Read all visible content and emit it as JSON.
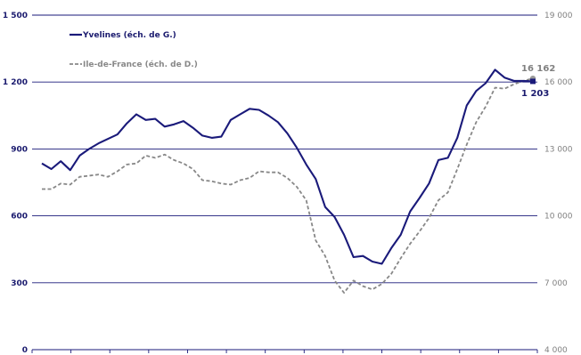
{
  "chart_data": {
    "type": "line",
    "title": "",
    "y_left": {
      "ylim": [
        0,
        1500
      ],
      "ticks": [
        0,
        300,
        600,
        900,
        1200,
        1500
      ],
      "tick_labels": [
        "0",
        "300",
        "600",
        "900",
        "1 200",
        "1 500"
      ]
    },
    "y_right": {
      "ylim": [
        4000,
        19000
      ],
      "ticks": [
        4000,
        7000,
        10000,
        13000,
        16000,
        19000
      ],
      "tick_labels": [
        "4 000",
        "7 000",
        "10 000",
        "13 000",
        "16 000",
        "19 000"
      ]
    },
    "grid": true,
    "legend_position": "top-left",
    "series": [
      {
        "name": "Yvelines (éch. de G.)",
        "axis": "left",
        "color": "#1a1a7a",
        "style": "solid",
        "values": [
          835,
          810,
          845,
          805,
          870,
          900,
          925,
          945,
          965,
          1015,
          1055,
          1030,
          1035,
          1000,
          1010,
          1025,
          995,
          960,
          950,
          955,
          1030,
          1055,
          1080,
          1075,
          1050,
          1020,
          970,
          905,
          830,
          765,
          640,
          595,
          515,
          415,
          420,
          395,
          385,
          455,
          515,
          620,
          680,
          745,
          850,
          860,
          950,
          1095,
          1160,
          1195,
          1255,
          1220,
          1205,
          1205,
          1203
        ]
      },
      {
        "name": "Ile-de-France (éch. de D.)",
        "axis": "right",
        "color": "#888888",
        "style": "dashed",
        "values": [
          11200,
          11200,
          11450,
          11400,
          11750,
          11800,
          11850,
          11750,
          12000,
          12300,
          12350,
          12700,
          12600,
          12750,
          12500,
          12350,
          12100,
          11600,
          11550,
          11450,
          11400,
          11600,
          11700,
          12000,
          11950,
          11950,
          11700,
          11300,
          10700,
          8900,
          8200,
          7100,
          6550,
          7100,
          6850,
          6700,
          6950,
          7400,
          8100,
          8750,
          9300,
          9900,
          10700,
          11050,
          12100,
          13200,
          14200,
          14900,
          15750,
          15700,
          15900,
          16050,
          16162
        ]
      }
    ],
    "annotations": [
      {
        "text": "16 162",
        "series": "Ile-de-France (éch. de D.)"
      },
      {
        "text": "1 203",
        "series": "Yvelines (éch. de G.)"
      }
    ]
  }
}
